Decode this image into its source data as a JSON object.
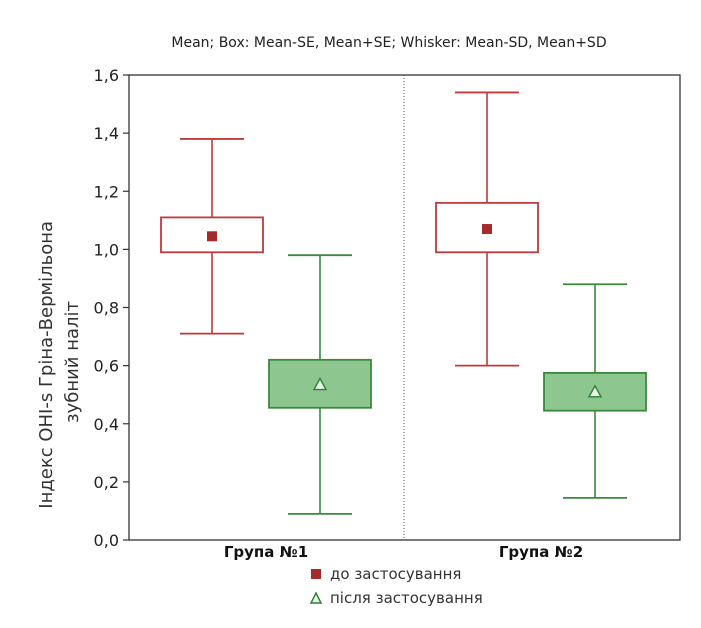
{
  "chart_data": {
    "type": "box",
    "title": "Mean; Box: Mean-SE, Mean+SE; Whisker: Mean-SD, Mean+SD",
    "xlabel": "",
    "ylabel": "Індекс OHI-s Гріна-Вермільона\nзубний наліт",
    "ylim": [
      0.0,
      1.6
    ],
    "yticks": [
      0.0,
      0.2,
      0.4,
      0.6,
      0.8,
      1.0,
      1.2,
      1.4,
      1.6
    ],
    "ytick_labels": [
      "0,0",
      "0,2",
      "0,4",
      "0,6",
      "0,8",
      "1,0",
      "1,2",
      "1,4",
      "1,6"
    ],
    "categories": [
      "Група №1",
      "Група №2"
    ],
    "grid": "vertical dotted line between groups",
    "legend_placement": "bottom",
    "series": [
      {
        "name": "до застосування",
        "color": "#c0393b",
        "marker": "square",
        "box_fill": "none",
        "mean": [
          1.045,
          1.07
        ],
        "box_low": [
          0.99,
          0.99
        ],
        "box_high": [
          1.11,
          1.16
        ],
        "whisker_low": [
          0.71,
          0.6
        ],
        "whisker_high": [
          1.38,
          1.54
        ]
      },
      {
        "name": "після застосування",
        "color": "#3a8a3e",
        "marker": "triangle",
        "box_fill": "#8dc68f",
        "mean": [
          0.535,
          0.51
        ],
        "box_low": [
          0.455,
          0.445
        ],
        "box_high": [
          0.62,
          0.575
        ],
        "whisker_low": [
          0.09,
          0.145
        ],
        "whisker_high": [
          0.98,
          0.88
        ]
      }
    ]
  }
}
